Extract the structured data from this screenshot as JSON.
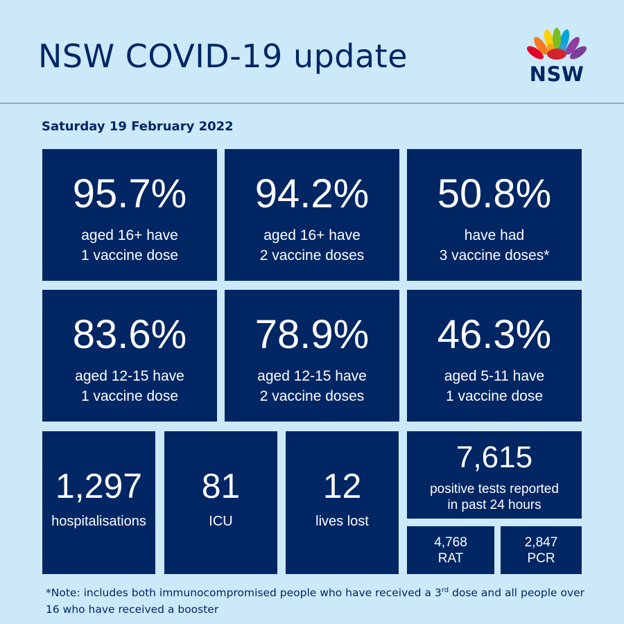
{
  "header": {
    "title": "NSW COVID-19 update",
    "logo_text": "NSW"
  },
  "date": "Saturday 19 February 2022",
  "vaccination_tiles": [
    {
      "value": "95.7%",
      "line1": "aged 16+ have",
      "line2": "1 vaccine dose"
    },
    {
      "value": "94.2%",
      "line1": "aged 16+ have",
      "line2": "2 vaccine doses"
    },
    {
      "value": "50.8%",
      "line1": "have had",
      "line2": "3 vaccine doses*"
    },
    {
      "value": "83.6%",
      "line1": "aged 12-15 have",
      "line2": "1 vaccine dose"
    },
    {
      "value": "78.9%",
      "line1": "aged 12-15 have",
      "line2": "2 vaccine doses"
    },
    {
      "value": "46.3%",
      "line1": "aged 5-11 have",
      "line2": "1 vaccine dose"
    }
  ],
  "stats": {
    "hospitalisations": {
      "value": "1,297",
      "label": "hospitalisations"
    },
    "icu": {
      "value": "81",
      "label": "ICU"
    },
    "deaths": {
      "value": "12",
      "label": "lives lost"
    }
  },
  "tests": {
    "value": "7,615",
    "line1": "positive tests reported",
    "line2": "in past 24 hours",
    "rat": {
      "value": "4,768",
      "label": "RAT"
    },
    "pcr": {
      "value": "2,847",
      "label": "PCR"
    }
  },
  "note": {
    "part1": "*Note: includes both immunocompromised people who have received a 3",
    "sup": "rd",
    "part2": " dose and all people over 16 who have received a booster"
  },
  "colors": {
    "background": "#cce9f9",
    "tile": "#002664",
    "text_dark": "#002664",
    "waratah": [
      "#e4002b",
      "#f47920",
      "#ffd200",
      "#78be20",
      "#00a3e0",
      "#7a3e98"
    ]
  }
}
